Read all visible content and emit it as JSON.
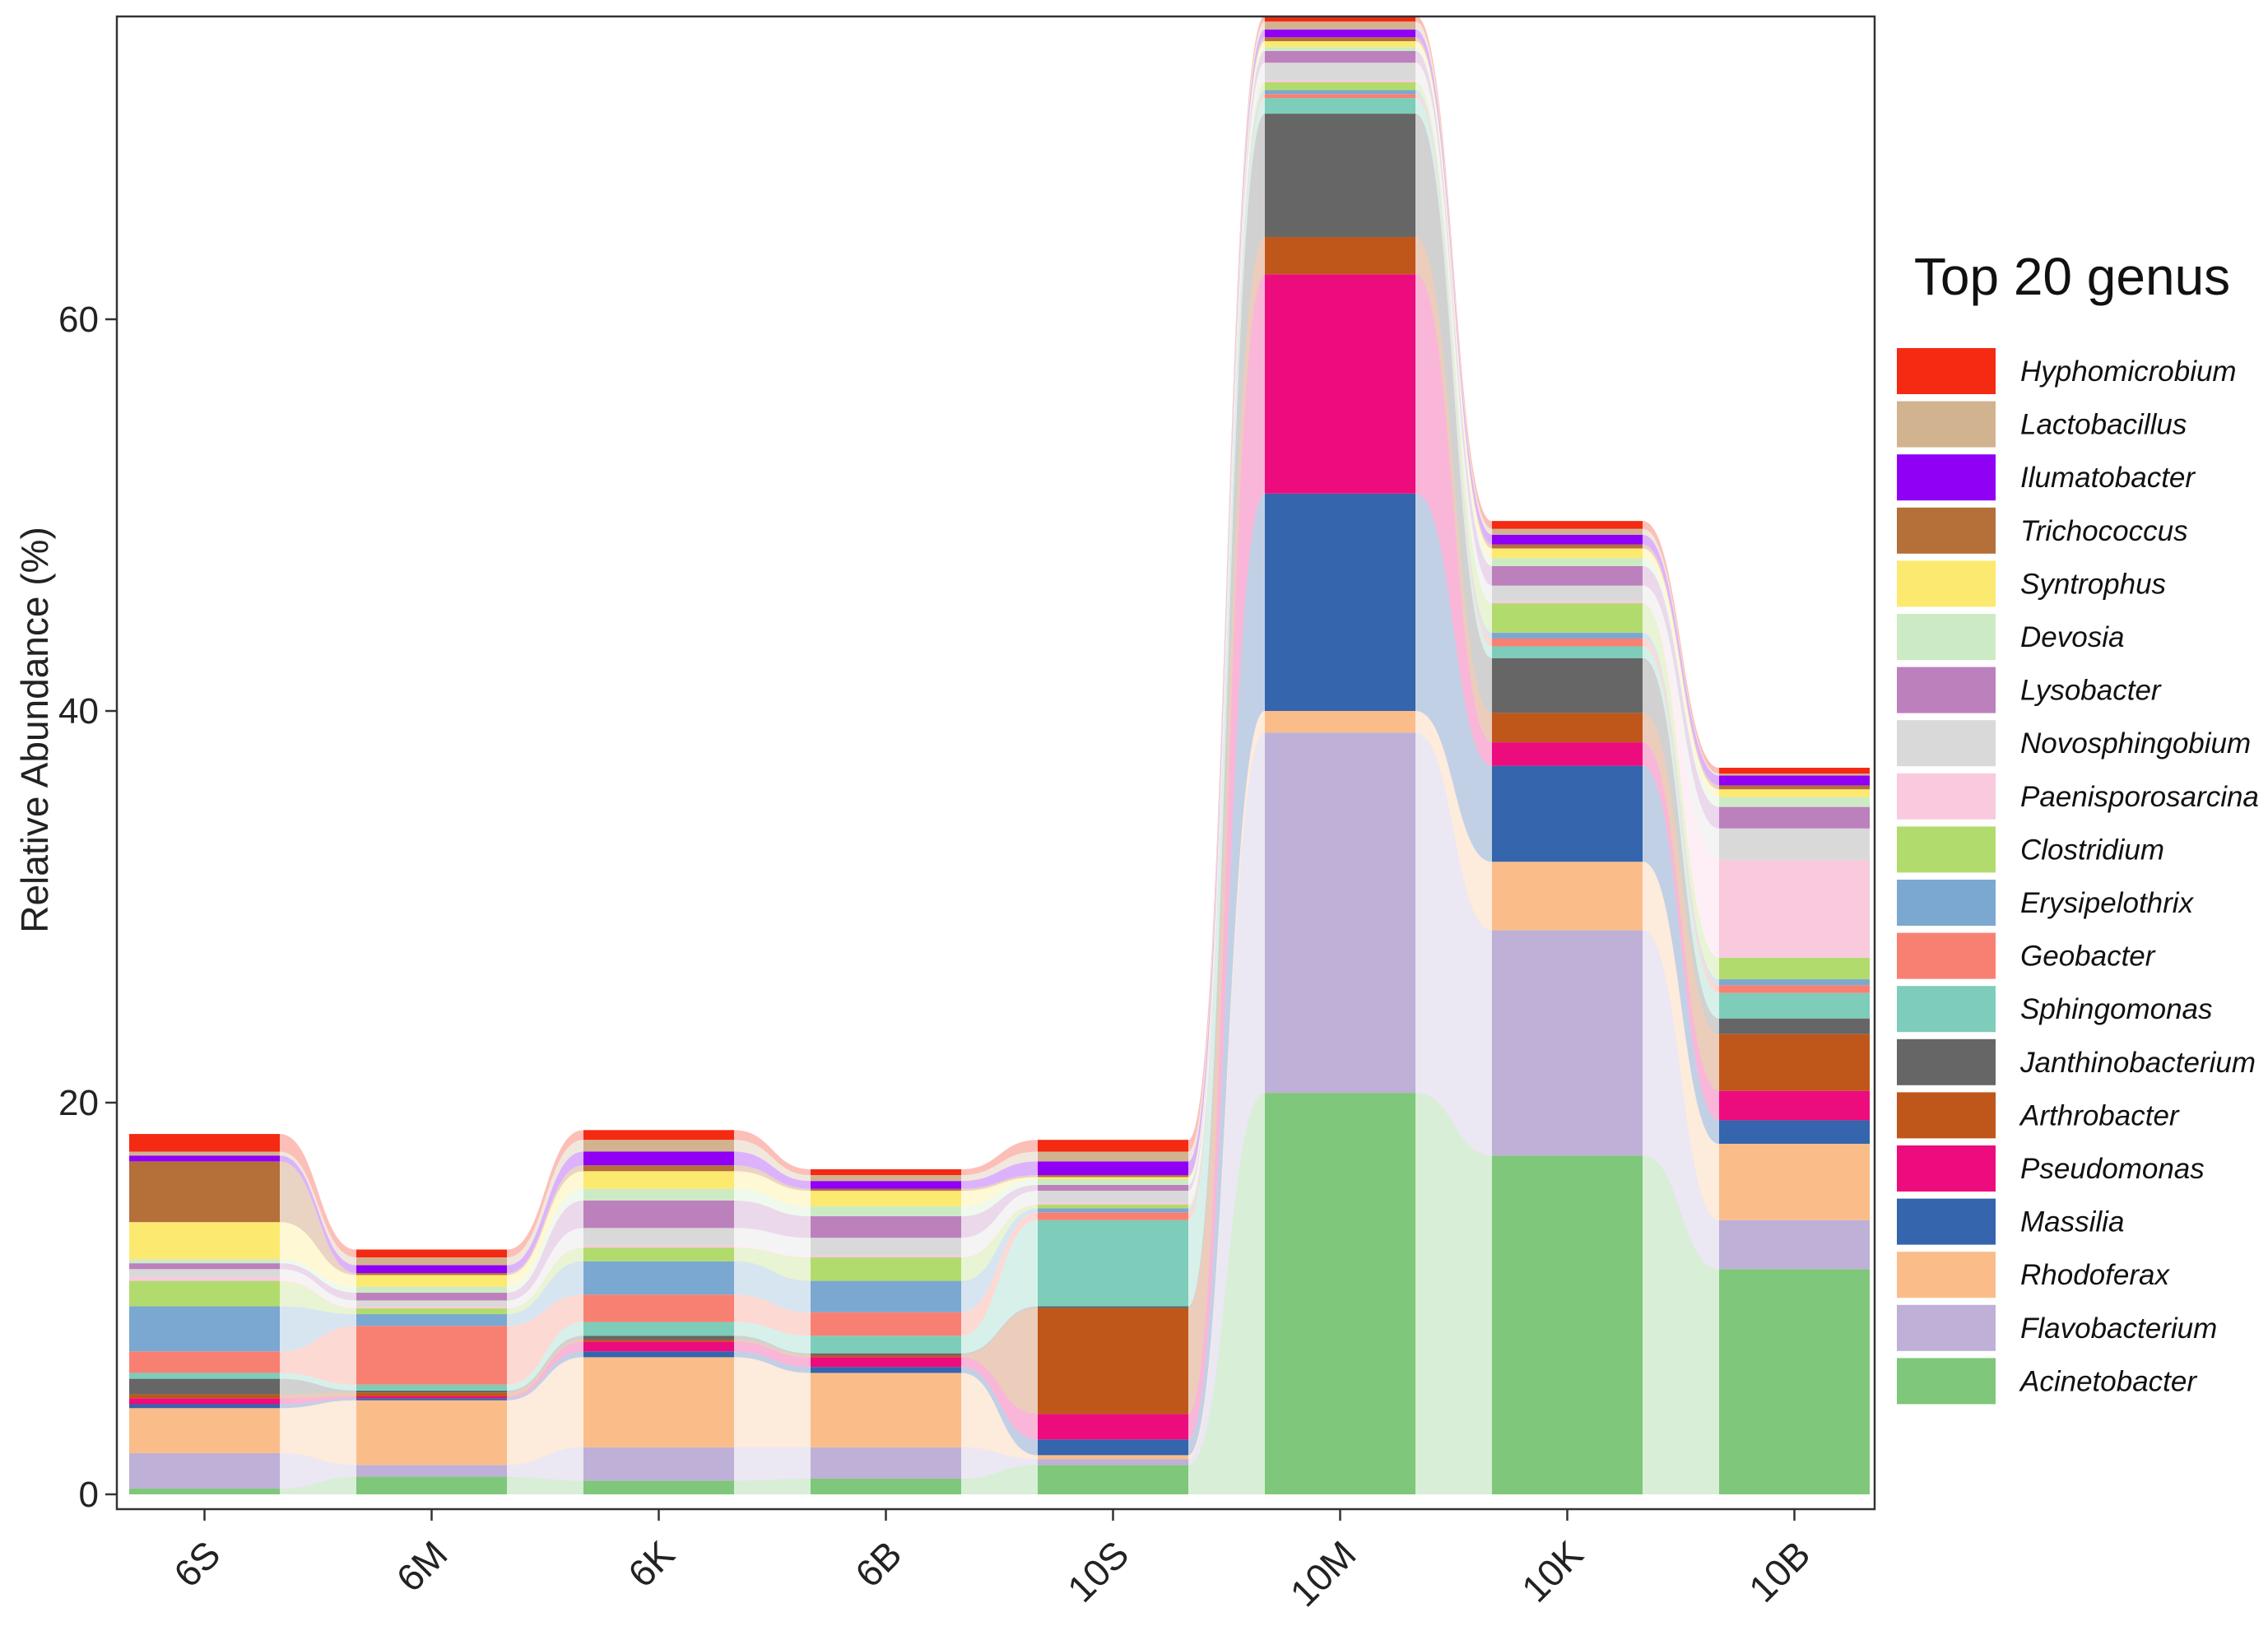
{
  "chart_data": {
    "type": "stacked bar with alluvial flows",
    "ylabel": "Relative Abundance (%)",
    "xlabel": "",
    "ylim": [
      0,
      75
    ],
    "yticks": [
      0,
      20,
      40,
      60
    ],
    "grid": false,
    "legend_position": "right",
    "legend_title": "Top 20 genus",
    "categories": [
      "6S",
      "6M",
      "6K",
      "6B",
      "10S",
      "10M",
      "10K",
      "10B"
    ],
    "series": [
      {
        "name": "Acinetobacter",
        "color": "#7FC77A",
        "values": [
          0.3,
          0.9,
          0.7,
          0.8,
          1.5,
          20.5,
          17.3,
          11.5
        ]
      },
      {
        "name": "Flavobacterium",
        "color": "#BEB0D6",
        "values": [
          1.8,
          0.6,
          1.7,
          1.6,
          0.3,
          18.4,
          11.5,
          2.5
        ]
      },
      {
        "name": "Rhodoferax",
        "color": "#FABD8A",
        "values": [
          2.3,
          3.3,
          4.6,
          3.8,
          0.2,
          1.1,
          3.5,
          3.9
        ]
      },
      {
        "name": "Massilia",
        "color": "#3465AD",
        "values": [
          0.2,
          0.1,
          0.3,
          0.3,
          0.8,
          11.1,
          4.9,
          1.2
        ]
      },
      {
        "name": "Pseudomonas",
        "color": "#EC0C7D",
        "values": [
          0.3,
          0.1,
          0.5,
          0.5,
          1.3,
          11.2,
          1.2,
          1.5
        ]
      },
      {
        "name": "Arthrobacter",
        "color": "#C0571A",
        "values": [
          0.2,
          0.2,
          0.1,
          0.1,
          5.4,
          1.9,
          1.5,
          2.9
        ]
      },
      {
        "name": "Janthinobacterium",
        "color": "#666666",
        "values": [
          0.8,
          0.1,
          0.2,
          0.1,
          0.1,
          6.3,
          2.8,
          0.8
        ]
      },
      {
        "name": "Sphingomonas",
        "color": "#7ECDBB",
        "values": [
          0.3,
          0.3,
          0.7,
          0.9,
          4.4,
          0.8,
          0.6,
          1.3
        ]
      },
      {
        "name": "Geobacter",
        "color": "#F88072",
        "values": [
          1.1,
          3.0,
          1.4,
          1.2,
          0.4,
          0.2,
          0.4,
          0.4
        ]
      },
      {
        "name": "Erysipelothrix",
        "color": "#7BA8D0",
        "values": [
          2.3,
          0.6,
          1.7,
          1.6,
          0.2,
          0.2,
          0.3,
          0.3
        ]
      },
      {
        "name": "Clostridium",
        "color": "#B2DB6E",
        "values": [
          1.3,
          0.3,
          0.7,
          1.2,
          0.2,
          0.4,
          1.5,
          1.1
        ]
      },
      {
        "name": "Paenisporosarcina",
        "color": "#F9C9DD",
        "values": [
          0.2,
          0.1,
          0.1,
          0.1,
          0.1,
          0.1,
          0.1,
          5.0
        ]
      },
      {
        "name": "Novosphingobium",
        "color": "#D9D9D9",
        "values": [
          0.4,
          0.3,
          0.9,
          0.9,
          0.6,
          0.9,
          0.8,
          1.6
        ]
      },
      {
        "name": "Lysobacter",
        "color": "#BC80BD",
        "values": [
          0.3,
          0.4,
          1.4,
          1.1,
          0.3,
          0.6,
          1.0,
          1.1
        ]
      },
      {
        "name": "Devosia",
        "color": "#CCEBC5",
        "values": [
          0.2,
          0.3,
          0.6,
          0.5,
          0.3,
          0.2,
          0.4,
          0.5
        ]
      },
      {
        "name": "Syntrophus",
        "color": "#FCE970",
        "values": [
          1.9,
          0.6,
          0.9,
          0.8,
          0.1,
          0.3,
          0.5,
          0.4
        ]
      },
      {
        "name": "Trichococcus",
        "color": "#B56F39",
        "values": [
          3.1,
          0.1,
          0.3,
          0.1,
          0.1,
          0.2,
          0.2,
          0.2
        ]
      },
      {
        "name": "Ilumatobacter",
        "color": "#8F00F5",
        "values": [
          0.3,
          0.4,
          0.7,
          0.4,
          0.7,
          0.4,
          0.5,
          0.5
        ]
      },
      {
        "name": "Lactobacillus",
        "color": "#D2B38F",
        "values": [
          0.2,
          0.4,
          0.6,
          0.3,
          0.5,
          0.4,
          0.3,
          0.1
        ]
      },
      {
        "name": "Hyphomicrobium",
        "color": "#F42A13",
        "values": [
          0.9,
          0.4,
          0.5,
          0.3,
          0.6,
          0.3,
          0.4,
          0.3
        ]
      }
    ]
  }
}
